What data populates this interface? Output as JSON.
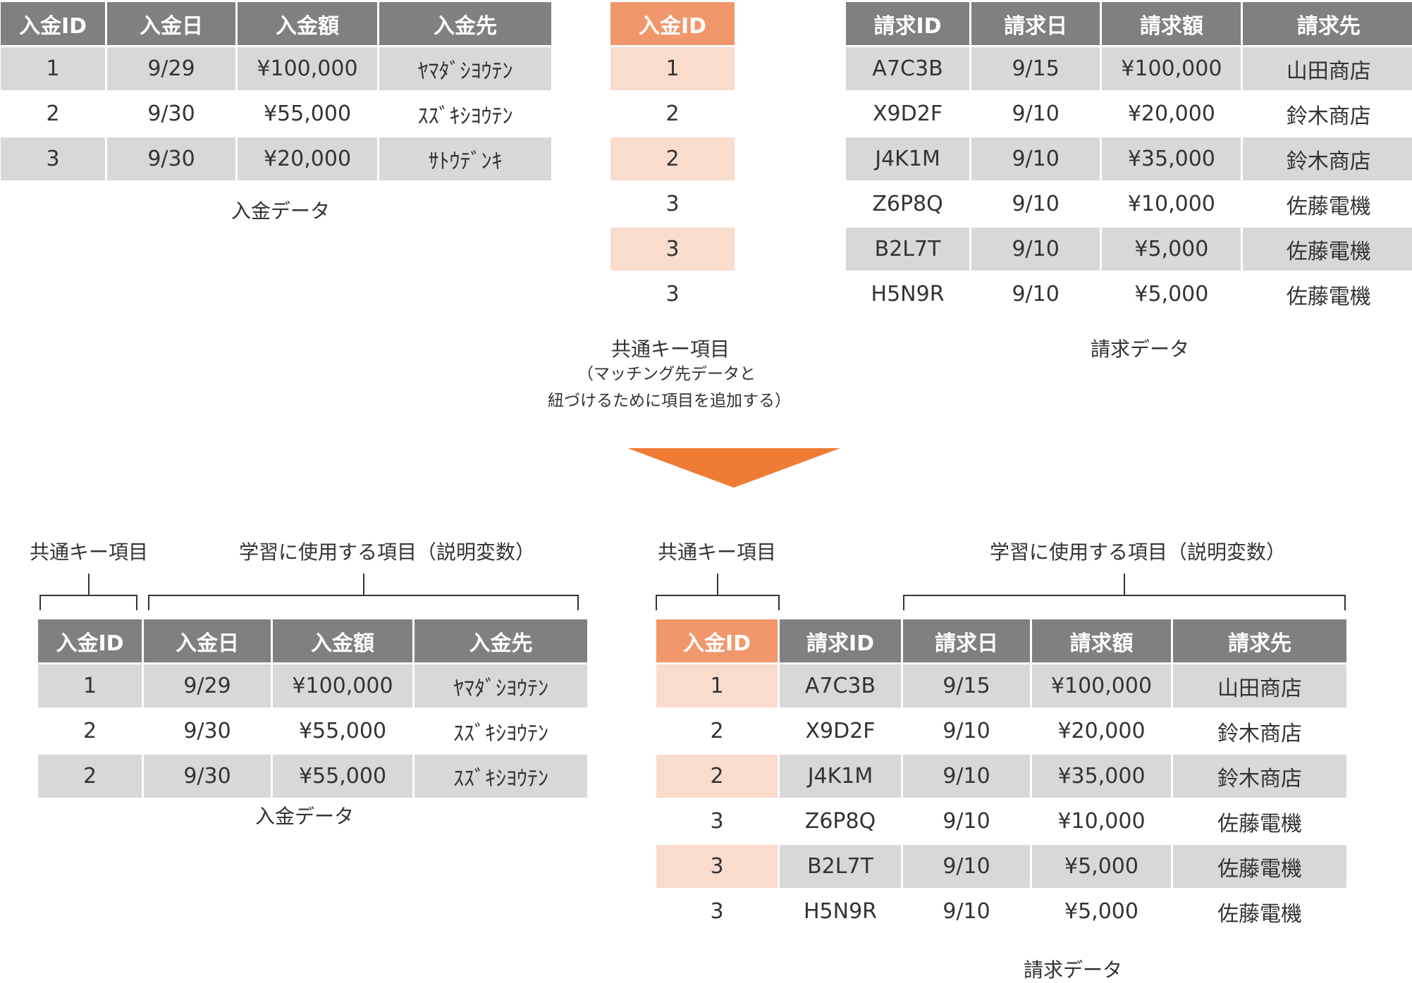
{
  "top": {
    "payment": {
      "headers": [
        "入金ID",
        "入金日",
        "入金額",
        "入金先"
      ],
      "rows": [
        [
          "1",
          "9/29",
          "¥100,000",
          "ﾔﾏﾀﾞｼﾖｳﾃﾝ"
        ],
        [
          "2",
          "9/30",
          "¥55,000",
          "ｽｽﾞｷｼﾖｳﾃﾝ"
        ],
        [
          "3",
          "9/30",
          "¥20,000",
          "ｻﾄｳﾃﾞﾝｷ"
        ]
      ],
      "caption": "入金データ"
    },
    "key": {
      "header": "入金ID",
      "values": [
        "1",
        "2",
        "2",
        "3",
        "3",
        "3"
      ],
      "caption": "共通キー項目",
      "note_line1": "（マッチング先データと",
      "note_line2": "紐づけるために項目を追加する）"
    },
    "invoice": {
      "headers": [
        "請求ID",
        "請求日",
        "請求額",
        "請求先"
      ],
      "rows": [
        [
          "A7C3B",
          "9/15",
          "¥100,000",
          "山田商店"
        ],
        [
          "X9D2F",
          "9/10",
          "¥20,000",
          "鈴木商店"
        ],
        [
          "J4K1M",
          "9/10",
          "¥35,000",
          "鈴木商店"
        ],
        [
          "Z6P8Q",
          "9/10",
          "¥10,000",
          "佐藤電機"
        ],
        [
          "B2L7T",
          "9/10",
          "¥5,000",
          "佐藤電機"
        ],
        [
          "H5N9R",
          "9/10",
          "¥5,000",
          "佐藤電機"
        ]
      ],
      "caption": "請求データ"
    }
  },
  "bottom": {
    "payment": {
      "key_label": "共通キー項目",
      "features_label": "学習に使用する項目（説明変数）",
      "headers": [
        "入金ID",
        "入金日",
        "入金額",
        "入金先"
      ],
      "rows": [
        [
          "1",
          "9/29",
          "¥100,000",
          "ﾔﾏﾀﾞｼﾖｳﾃﾝ"
        ],
        [
          "2",
          "9/30",
          "¥55,000",
          "ｽｽﾞｷｼﾖｳﾃﾝ"
        ],
        [
          "2",
          "9/30",
          "¥55,000",
          "ｽｽﾞｷｼﾖｳﾃﾝ"
        ]
      ],
      "caption": "入金データ"
    },
    "invoice": {
      "key_label": "共通キー項目",
      "features_label": "学習に使用する項目（説明変数）",
      "headers": [
        "入金ID",
        "請求ID",
        "請求日",
        "請求額",
        "請求先"
      ],
      "rows": [
        [
          "1",
          "A7C3B",
          "9/15",
          "¥100,000",
          "山田商店"
        ],
        [
          "2",
          "X9D2F",
          "9/10",
          "¥20,000",
          "鈴木商店"
        ],
        [
          "2",
          "J4K1M",
          "9/10",
          "¥35,000",
          "鈴木商店"
        ],
        [
          "3",
          "Z6P8Q",
          "9/10",
          "¥10,000",
          "佐藤電機"
        ],
        [
          "3",
          "B2L7T",
          "9/10",
          "¥5,000",
          "佐藤電機"
        ],
        [
          "3",
          "H5N9R",
          "9/10",
          "¥5,000",
          "佐藤電機"
        ]
      ],
      "caption": "請求データ"
    }
  },
  "colors": {
    "header_gray": "#808080",
    "key_header_orange": "#f0986b",
    "key_cell_peach": "#fadccd",
    "row_gray": "#d8d8d8",
    "arrow_orange": "#ef7c35"
  }
}
